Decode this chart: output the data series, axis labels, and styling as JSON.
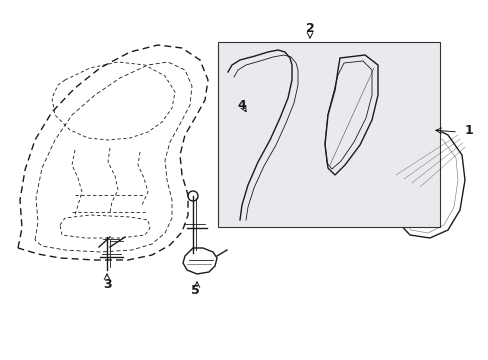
{
  "bg_color": "#ffffff",
  "line_color": "#1a1a1a",
  "box_fill": "#e8eaed",
  "box_stroke": "#333333",
  "figsize": [
    4.89,
    3.6
  ],
  "dpi": 100
}
